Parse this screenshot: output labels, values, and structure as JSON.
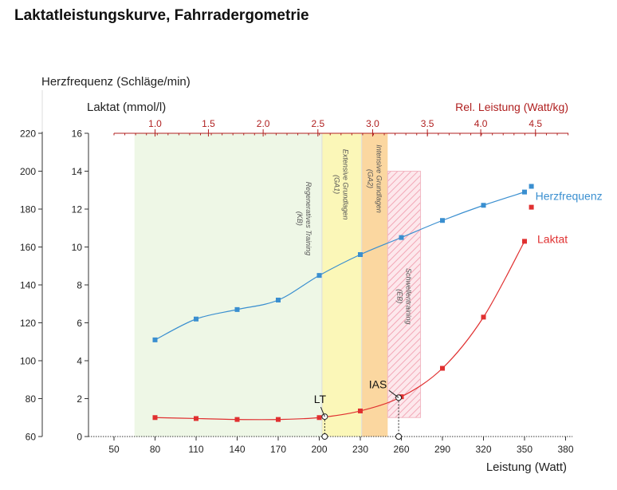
{
  "title": "Laktatleistungskurve, Fahrradergometrie",
  "colors": {
    "hr": "#3a8fd0",
    "lactate": "#e03030",
    "rel_axis": "#b02020",
    "zone_kb": "#eef7e6",
    "zone_ga1": "#fbf7b8",
    "zone_ga2": "#fbd7a0",
    "zone_eb": "#f8d0d8"
  },
  "chart_data": {
    "type": "line",
    "x_axis": {
      "label": "Leistung (Watt)",
      "range": [
        35,
        385
      ],
      "ticks": [
        50,
        80,
        110,
        140,
        170,
        200,
        230,
        260,
        290,
        320,
        350,
        380
      ]
    },
    "y_axis_hr": {
      "label": "Herzfrequenz (Schläge/min)",
      "range": [
        60,
        220
      ],
      "ticks": [
        60,
        80,
        100,
        120,
        140,
        160,
        180,
        200,
        220
      ]
    },
    "y_axis_lactate": {
      "label": "Laktat (mmol/l)",
      "range": [
        0,
        16
      ],
      "ticks": [
        0,
        2,
        4,
        6,
        8,
        10,
        12,
        14,
        16
      ]
    },
    "x_axis_top": {
      "label": "Rel. Leistung (Watt/kg)",
      "ticks": [
        {
          "label": "1.0",
          "watt": 80
        },
        {
          "label": "1.5",
          "watt": 119
        },
        {
          "label": "2.0",
          "watt": 159
        },
        {
          "label": "2.5",
          "watt": 199
        },
        {
          "label": "3.0",
          "watt": 239
        },
        {
          "label": "3.5",
          "watt": 279
        },
        {
          "label": "4.0",
          "watt": 318
        },
        {
          "label": "4.5",
          "watt": 358
        }
      ]
    },
    "series": [
      {
        "name": "Herzfrequenz",
        "axis": "hr",
        "points": [
          [
            80,
            111
          ],
          [
            110,
            122
          ],
          [
            140,
            127
          ],
          [
            170,
            132
          ],
          [
            200,
            145
          ],
          [
            230,
            156
          ],
          [
            260,
            165
          ],
          [
            290,
            174
          ],
          [
            320,
            182
          ],
          [
            350,
            189
          ],
          [
            355,
            192
          ]
        ]
      },
      {
        "name": "Laktat",
        "axis": "lactate",
        "points": [
          [
            80,
            1.0
          ],
          [
            110,
            0.95
          ],
          [
            140,
            0.9
          ],
          [
            170,
            0.9
          ],
          [
            200,
            1.0
          ],
          [
            230,
            1.35
          ],
          [
            260,
            2.1
          ],
          [
            290,
            3.6
          ],
          [
            320,
            6.3
          ],
          [
            350,
            10.3
          ],
          [
            355,
            12.1
          ]
        ]
      }
    ],
    "zones": [
      {
        "name": "Regeneratives Training (KB)",
        "from": 65,
        "to": 202,
        "level": [
          0,
          16
        ]
      },
      {
        "name": "Extensive Grundlagen (GA1)",
        "from": 202,
        "to": 231,
        "level": [
          0,
          16
        ]
      },
      {
        "name": "Intensive Grundlagen (GA2)",
        "from": 231,
        "to": 250,
        "level": [
          0,
          16
        ]
      },
      {
        "name": "Schwellentraining (EB)",
        "from": 250,
        "to": 274,
        "level": [
          1.0,
          14.0
        ]
      }
    ],
    "zone_labels": [
      {
        "lines": [
          "Regeneratives Training",
          "(KB)"
        ],
        "x": 189,
        "y": 11.5
      },
      {
        "lines": [
          "Extensive Grundlagen",
          "(GA1)"
        ],
        "x": 216,
        "y": 13.3
      },
      {
        "lines": [
          "Intensive Grundlagen",
          "(GA2)"
        ],
        "x": 240.5,
        "y": 13.6
      },
      {
        "lines": [
          "Schwellentraining",
          "(EB)"
        ],
        "x": 262,
        "y": 7.4
      }
    ],
    "markers": [
      {
        "label": "LT",
        "watt": 204,
        "lactate": 1.05
      },
      {
        "label": "IAS",
        "watt": 258,
        "lactate": 2.05
      }
    ],
    "end_labels": {
      "hr": "Herzfrequenz",
      "lactate": "Laktat"
    }
  }
}
